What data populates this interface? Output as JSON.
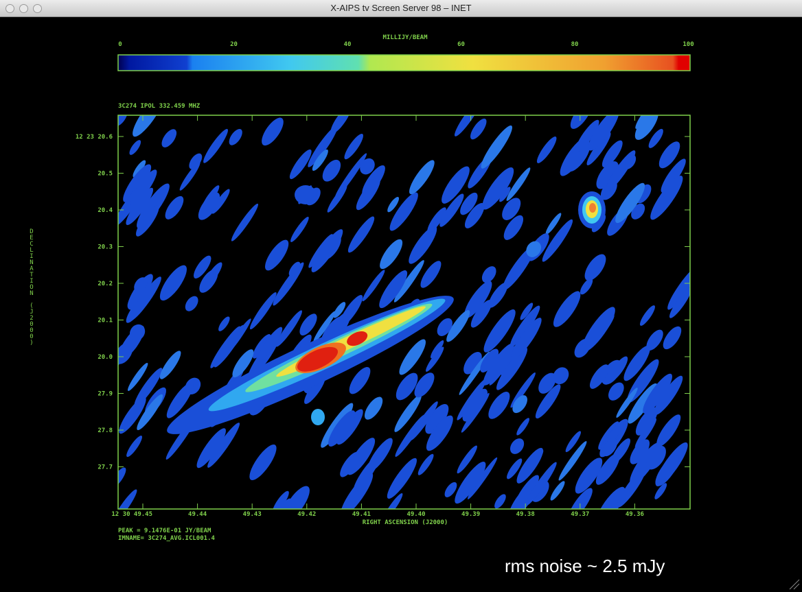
{
  "titlebar": {
    "title": "X-AIPS tv Screen Server 98 – INET"
  },
  "colorbar": {
    "label": "MILLIJY/BEAM",
    "ticks": [
      "0",
      "20",
      "40",
      "60",
      "80",
      "100"
    ]
  },
  "plot": {
    "header": "3C274 IPOL  332.459 MHZ",
    "y_ticks": [
      "12 23 20.6",
      "20.5",
      "20.4",
      "20.3",
      "20.2",
      "20.1",
      "20.0",
      "27.9",
      "27.8",
      "27.7"
    ],
    "y_label": "DECLINATION (J2000)",
    "x_ticks": [
      "12 30 49.45",
      "49.44",
      "49.43",
      "49.42",
      "49.41",
      "49.40",
      "49.39",
      "49.38",
      "49.37",
      "49.36"
    ],
    "x_label": "RIGHT ASCENSION (J2000)"
  },
  "footer": {
    "lines": [
      "PEAK =  9.1476E-01 JY/BEAM",
      "IMNAME= 3C274_AVG.ICL001.4"
    ]
  },
  "annotation": "rms noise ~ 2.5 mJy"
}
